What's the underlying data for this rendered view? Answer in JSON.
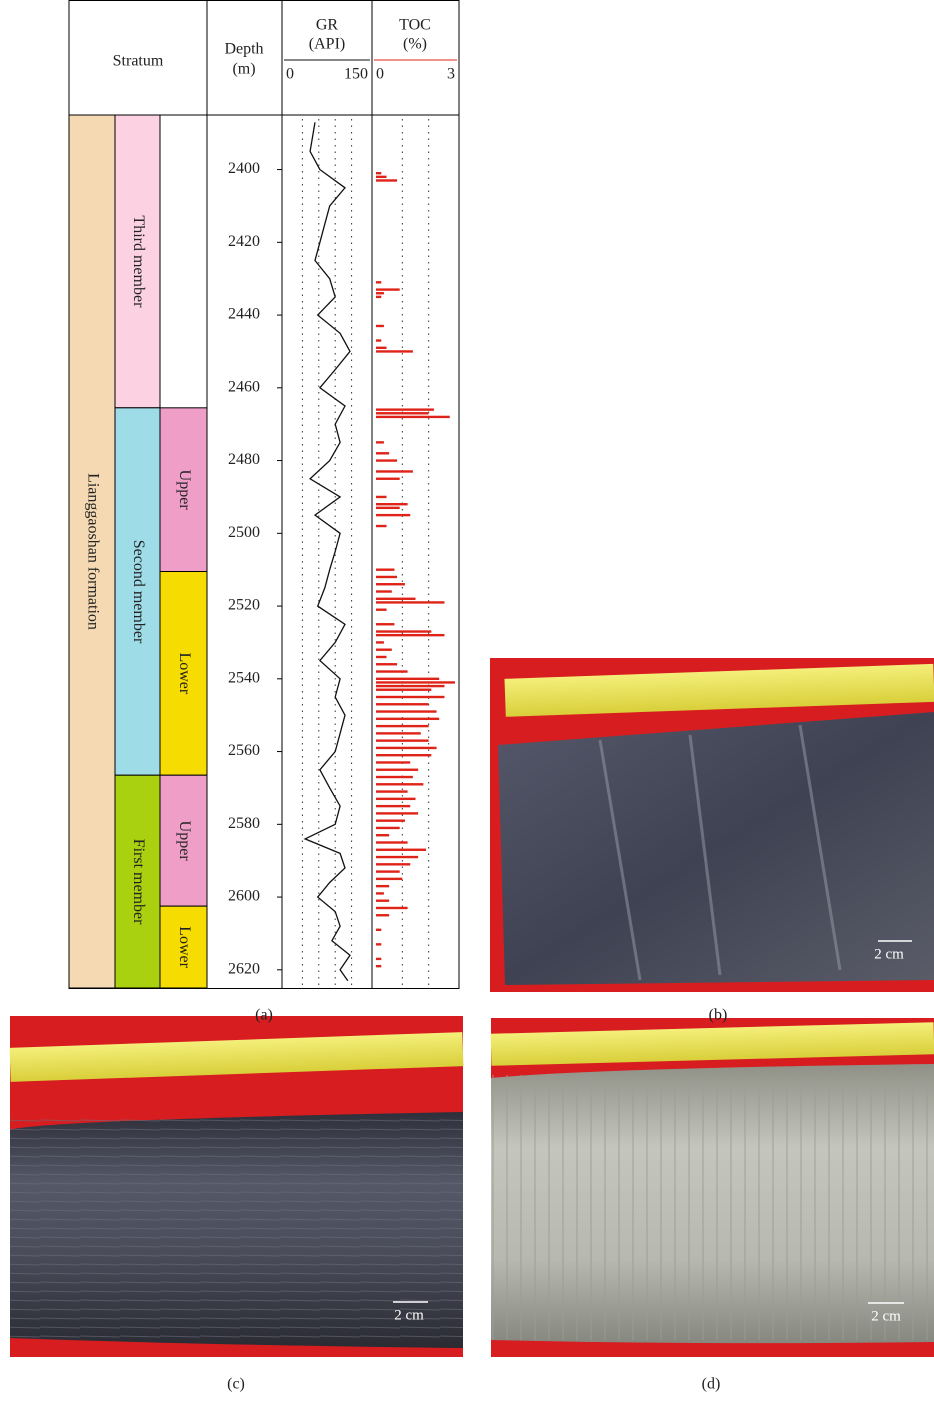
{
  "chart_data": {
    "type": "well-log",
    "stratum_header": "Stratum",
    "depth_label": "Depth",
    "depth_unit": "(m)",
    "ylim": [
      2385,
      2625
    ],
    "yticks": [
      2400,
      2420,
      2440,
      2460,
      2480,
      2500,
      2520,
      2540,
      2560,
      2580,
      2600,
      2620
    ],
    "formations": [
      {
        "name": "Lianggaoshan formation",
        "top": 2385,
        "bottom": 2625,
        "color": "#f4d9b3"
      }
    ],
    "members": [
      {
        "name": "Third member",
        "top": 2385,
        "bottom": 2465.5,
        "color": "#fcd2e2"
      },
      {
        "name": "Second member",
        "top": 2465.5,
        "bottom": 2566.5,
        "color": "#9edde8"
      },
      {
        "name": "First member",
        "top": 2566.5,
        "bottom": 2625,
        "color": "#a9d10f"
      }
    ],
    "submembers": [
      {
        "name": "Upper",
        "top": 2465.5,
        "bottom": 2510.5,
        "color": "#ef9ec8"
      },
      {
        "name": "Lower",
        "top": 2510.5,
        "bottom": 2566.5,
        "color": "#f6dc00"
      },
      {
        "name": "Upper",
        "top": 2566.5,
        "bottom": 2602.5,
        "color": "#ef9ec8"
      },
      {
        "name": "Lower",
        "top": 2602.5,
        "bottom": 2625,
        "color": "#f6dc00"
      }
    ],
    "series": [
      {
        "name": "GR",
        "unit": "(API)",
        "color": "#111111",
        "kind": "line",
        "xlim": [
          0,
          150
        ],
        "xticks": [
          0,
          150
        ],
        "grid": [
          30,
          60,
          90,
          120
        ],
        "depths": [
          2387,
          2395,
          2400,
          2405,
          2410,
          2415,
          2420,
          2425,
          2430,
          2435,
          2440,
          2445,
          2450,
          2455,
          2460,
          2465,
          2470,
          2475,
          2480,
          2485,
          2490,
          2495,
          2500,
          2505,
          2510,
          2515,
          2520,
          2525,
          2530,
          2535,
          2540,
          2545,
          2550,
          2555,
          2560,
          2565,
          2570,
          2575,
          2580,
          2584,
          2588,
          2592,
          2596,
          2600,
          2604,
          2608,
          2612,
          2616,
          2620,
          2623
        ],
        "values": [
          53,
          44,
          62,
          108,
          80,
          71,
          62,
          53,
          80,
          90,
          58,
          99,
          117,
          90,
          62,
          108,
          90,
          99,
          80,
          44,
          99,
          53,
          99,
          90,
          80,
          71,
          58,
          108,
          90,
          62,
          99,
          90,
          108,
          99,
          90,
          62,
          80,
          99,
          90,
          35,
          99,
          108,
          80,
          58,
          90,
          99,
          84,
          117,
          99,
          113
        ]
      },
      {
        "name": "TOC",
        "unit": "(%)",
        "color": "#e02318",
        "kind": "bar",
        "xlim": [
          0,
          3
        ],
        "xticks": [
          0,
          3
        ],
        "grid": [
          1,
          2
        ],
        "depths": [
          2401,
          2402,
          2403,
          2431,
          2433,
          2434,
          2435,
          2443,
          2447,
          2449,
          2450,
          2466,
          2467,
          2468,
          2475,
          2478,
          2480,
          2483,
          2485,
          2490,
          2492,
          2493,
          2495,
          2498,
          2510,
          2512,
          2514,
          2516,
          2518,
          2519,
          2521,
          2525,
          2527,
          2528,
          2530,
          2532,
          2534,
          2536,
          2538,
          2540,
          2541,
          2542,
          2543,
          2545,
          2547,
          2549,
          2551,
          2553,
          2555,
          2557,
          2559,
          2561,
          2563,
          2565,
          2567,
          2569,
          2571,
          2573,
          2575,
          2577,
          2579,
          2581,
          2583,
          2585,
          2587,
          2589,
          2591,
          2593,
          2595,
          2597,
          2599,
          2601,
          2603,
          2605,
          2609,
          2613,
          2617,
          2619
        ],
        "values": [
          0.2,
          0.4,
          0.8,
          0.2,
          0.9,
          0.3,
          0.2,
          0.3,
          0.2,
          0.4,
          1.4,
          2.2,
          2.0,
          2.8,
          0.3,
          0.5,
          0.8,
          1.4,
          0.9,
          0.4,
          1.2,
          0.9,
          1.3,
          0.4,
          0.7,
          0.8,
          1.1,
          0.6,
          1.5,
          2.6,
          0.4,
          0.7,
          2.1,
          2.6,
          0.3,
          0.6,
          0.4,
          0.8,
          1.2,
          2.4,
          3.0,
          2.6,
          2.1,
          2.6,
          2.0,
          2.3,
          2.4,
          2.0,
          1.7,
          2.0,
          2.3,
          2.1,
          1.3,
          1.6,
          1.4,
          1.8,
          1.2,
          1.5,
          1.3,
          1.6,
          1.1,
          0.9,
          0.5,
          1.2,
          1.9,
          1.6,
          1.3,
          0.9,
          1.0,
          0.5,
          0.3,
          0.5,
          1.2,
          0.5,
          0.2,
          0.2,
          0.2,
          0.2
        ]
      }
    ]
  },
  "panel_labels": [
    "(a)",
    "(b)",
    "(c)",
    "(d)"
  ],
  "scale_bars": [
    "2 cm",
    "2 cm",
    "2 cm"
  ]
}
